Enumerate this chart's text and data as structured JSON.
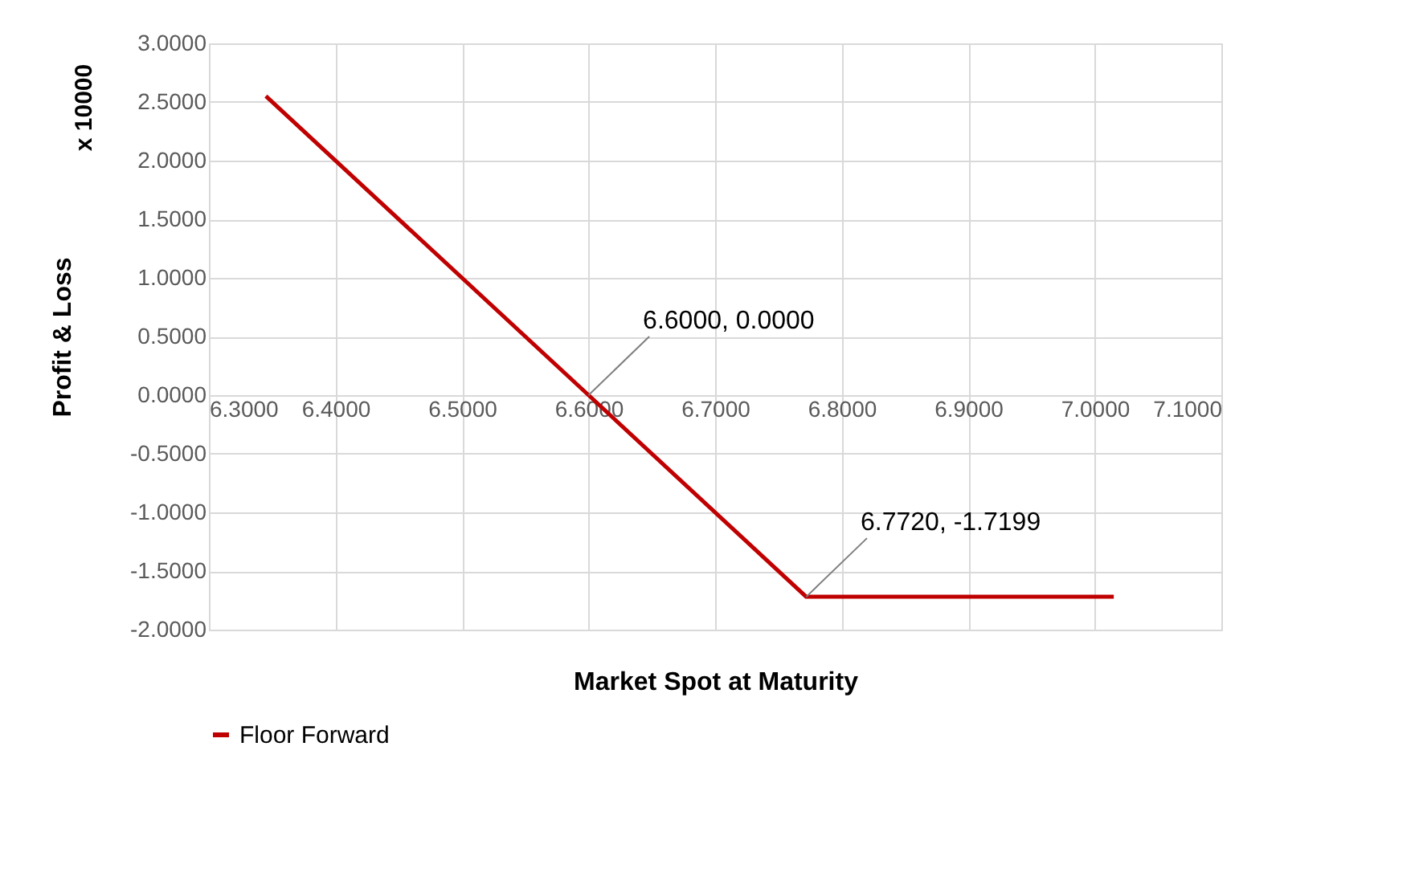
{
  "chart_data": {
    "type": "line",
    "xlabel": "Market Spot at Maturity",
    "ylabel": "Profit & Loss",
    "x": [
      6.345,
      6.6,
      6.772,
      7.015
    ],
    "series": [
      {
        "name": "Floor Forward",
        "color": "#c00000",
        "values": [
          2.55,
          0.0,
          -1.72,
          -1.72
        ]
      }
    ],
    "xlim": [
      6.3,
      7.1
    ],
    "xticks": [
      {
        "value": 6.3,
        "label": "6.3000"
      },
      {
        "value": 6.4,
        "label": "6.4000"
      },
      {
        "value": 6.5,
        "label": "6.5000"
      },
      {
        "value": 6.6,
        "label": "6.6000"
      },
      {
        "value": 6.7,
        "label": "6.7000"
      },
      {
        "value": 6.8,
        "label": "6.8000"
      },
      {
        "value": 6.9,
        "label": "6.9000"
      },
      {
        "value": 7.0,
        "label": "7.0000"
      },
      {
        "value": 7.1,
        "label": "7.1000"
      }
    ],
    "ylim": [
      -2,
      3
    ],
    "yticks": [
      {
        "value": -2,
        "label": "-2.0000"
      },
      {
        "value": -1.5,
        "label": "-1.5000"
      },
      {
        "value": -1,
        "label": "-1.0000"
      },
      {
        "value": -0.5,
        "label": "-0.5000"
      },
      {
        "value": 0,
        "label": "0.0000"
      },
      {
        "value": 0.5,
        "label": "0.5000"
      },
      {
        "value": 1,
        "label": "1.0000"
      },
      {
        "value": 1.5,
        "label": "1.5000"
      },
      {
        "value": 2,
        "label": "2.0000"
      },
      {
        "value": 2.5,
        "label": "2.5000"
      },
      {
        "value": 3,
        "label": "3.0000"
      }
    ],
    "grid": true,
    "legend": "bottom",
    "marker": "none",
    "line_style": "solid",
    "annotations": [
      "x 10000",
      {
        "text": "6.6000, 0.0000",
        "x": 6.6,
        "y": 0.0
      },
      {
        "text": "6.7720, -1.7199",
        "x": 6.772,
        "y": -1.7199
      }
    ]
  }
}
